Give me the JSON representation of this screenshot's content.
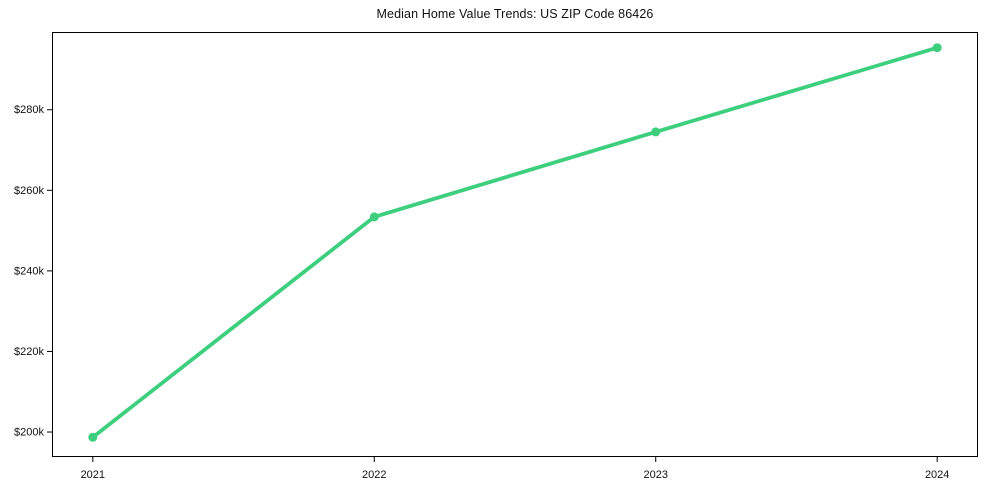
{
  "chart_data": {
    "type": "line",
    "title": "Median Home Value Trends: US ZIP Code 86426",
    "xlabel": "",
    "ylabel": "",
    "categories": [
      "2021",
      "2022",
      "2023",
      "2024"
    ],
    "values": [
      198700,
      253400,
      274500,
      295400
    ],
    "ytick_values": [
      200000,
      220000,
      240000,
      260000,
      280000
    ],
    "ytick_labels": [
      "$200k",
      "$220k",
      "$240k",
      "$260k",
      "$280k"
    ],
    "ylim": [
      193800,
      299300
    ],
    "xlim": [
      -0.145,
      3.145
    ],
    "grid": false,
    "legend": false,
    "line_color": "#3ecf7e",
    "marker": "circle",
    "axis_color": "#000000",
    "tick_text_color": "#111111"
  }
}
